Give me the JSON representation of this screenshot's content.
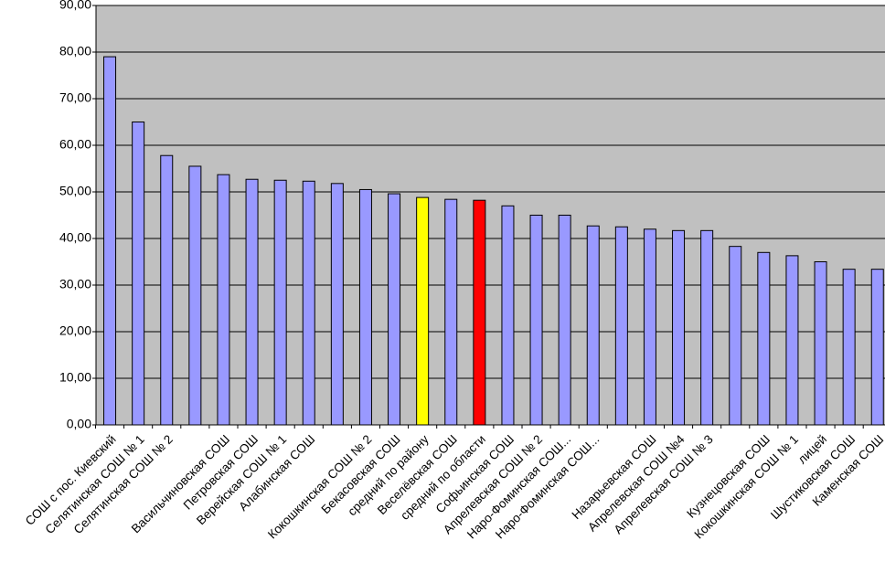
{
  "chart_data": {
    "type": "bar",
    "categories": [
      "СОШ с пос. Киевский",
      "Селятинская СОШ № 1",
      "Селятинская СОШ № 2",
      null,
      "Васильчиновская СОШ",
      "Петровская СОШ",
      "Верейская СОШ № 1",
      "Алабинская СОШ",
      null,
      "Кокошкинская СОШ № 2",
      "Бекасовская СОШ",
      "средний по району",
      "Веселёвская СОШ",
      "средний по области",
      "Софьинская СОШ",
      "Апрелевская СОШ № 2",
      "Наро-Фоминская СОШ...",
      "Наро-Фоминская СОШ...",
      null,
      "Назарьевская СОШ",
      "Апрелевская СОШ №4",
      "Апрелевская СОШ № 3",
      null,
      "Кузнецовская СОШ",
      "Кокошкинская СОШ № 1",
      "лицей",
      "Шустиковская СОШ",
      "Каменская СОШ"
    ],
    "values": [
      79,
      65,
      57.8,
      55.5,
      53.7,
      52.7,
      52.5,
      52.3,
      51.8,
      50.5,
      49.6,
      48.8,
      48.4,
      48.2,
      47,
      45,
      45,
      42.7,
      42.5,
      42,
      41.7,
      41.7,
      38.3,
      37,
      36.3,
      35,
      33.4,
      33.4
    ],
    "colors": [
      "#9999ff",
      "#9999ff",
      "#9999ff",
      "#9999ff",
      "#9999ff",
      "#9999ff",
      "#9999ff",
      "#9999ff",
      "#9999ff",
      "#9999ff",
      "#9999ff",
      "#ffff00",
      "#9999ff",
      "#ff0000",
      "#9999ff",
      "#9999ff",
      "#9999ff",
      "#9999ff",
      "#9999ff",
      "#9999ff",
      "#9999ff",
      "#9999ff",
      "#9999ff",
      "#9999ff",
      "#9999ff",
      "#9999ff",
      "#9999ff",
      "#9999ff"
    ],
    "ylim": [
      0,
      90
    ],
    "yticks": [
      {
        "value": 0,
        "label": "0,00"
      },
      {
        "value": 10,
        "label": "10,00"
      },
      {
        "value": 20,
        "label": "20,00"
      },
      {
        "value": 30,
        "label": "30,00"
      },
      {
        "value": 40,
        "label": "40,00"
      },
      {
        "value": 50,
        "label": "50,00"
      },
      {
        "value": 60,
        "label": "60,00"
      },
      {
        "value": 70,
        "label": "70,00"
      },
      {
        "value": 80,
        "label": "80,00"
      },
      {
        "value": 90,
        "label": "90,00"
      }
    ],
    "grid": true
  }
}
